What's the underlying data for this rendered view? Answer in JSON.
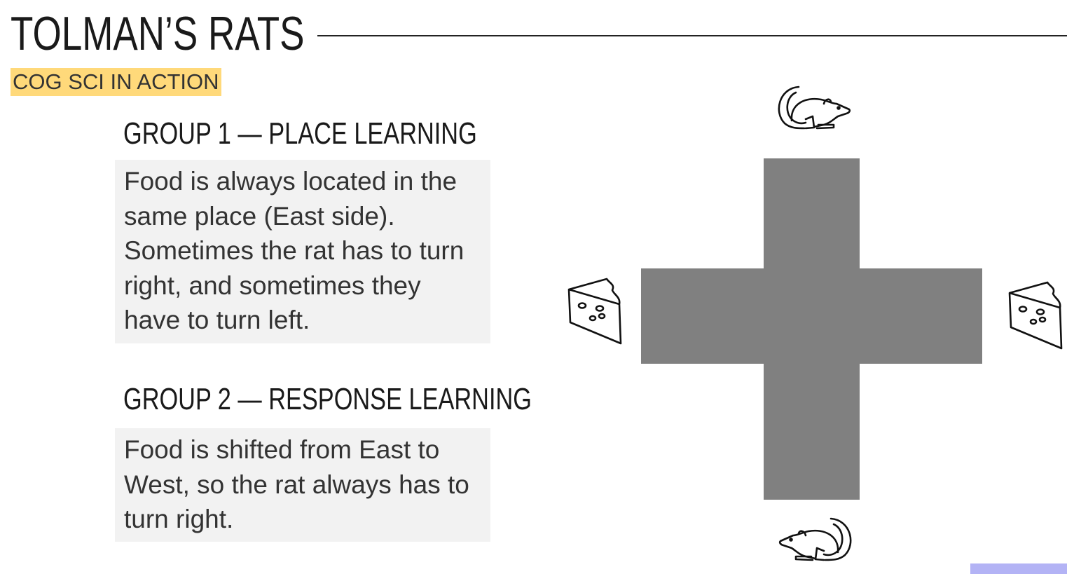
{
  "slide": {
    "title": "TOLMAN’S RATS",
    "subtitle": "COG SCI IN ACTION"
  },
  "groups": [
    {
      "heading": "GROUP 1 — PLACE LEARNING",
      "description": "Food is always located in the same place (East side). Sometimes the rat has to turn right, and sometimes they have to turn left."
    },
    {
      "heading": "GROUP 2 — RESPONSE LEARNING",
      "description": "Food is shifted from East to West, so the rat always has to turn right."
    }
  ],
  "diagram": {
    "maze_color": "#808080",
    "accent_color": "#b3b3f5",
    "icons": [
      "rat-icon-north",
      "cheese-icon-west",
      "cheese-icon-east",
      "rat-icon-south"
    ]
  }
}
